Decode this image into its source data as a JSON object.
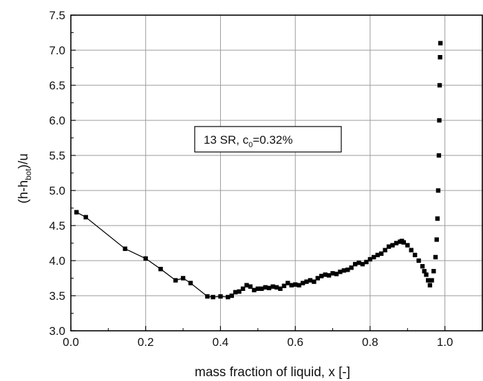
{
  "chart_data": {
    "type": "scatter",
    "xlabel": "mass fraction of liquid, x [-]",
    "ylabel": {
      "base": "(h-h",
      "sub": "bot",
      "tail": ")/u"
    },
    "xlim": [
      0.0,
      1.1
    ],
    "ylim": [
      3.0,
      7.5
    ],
    "x_ticks": [
      "0.0",
      "0.2",
      "0.4",
      "0.6",
      "0.8",
      "1.0"
    ],
    "y_ticks": [
      "3.0",
      "3.5",
      "4.0",
      "4.5",
      "5.0",
      "5.5",
      "6.0",
      "6.5",
      "7.0",
      "7.5"
    ],
    "grid": true,
    "annotation": {
      "pre": "13 SR,   c",
      "sub": "0",
      "post": "=0.32%"
    },
    "series": [
      {
        "line_points": [
          [
            0.015,
            4.69
          ],
          [
            0.04,
            4.62
          ],
          [
            0.145,
            4.17
          ],
          [
            0.2,
            4.03
          ],
          [
            0.24,
            3.88
          ],
          [
            0.28,
            3.72
          ],
          [
            0.3,
            3.75
          ],
          [
            0.32,
            3.68
          ],
          [
            0.365,
            3.49
          ],
          [
            0.38,
            3.48
          ],
          [
            0.4,
            3.49
          ],
          [
            0.42,
            3.48
          ]
        ],
        "points": [
          [
            0.015,
            4.69
          ],
          [
            0.04,
            4.62
          ],
          [
            0.145,
            4.17
          ],
          [
            0.2,
            4.03
          ],
          [
            0.24,
            3.88
          ],
          [
            0.28,
            3.72
          ],
          [
            0.3,
            3.75
          ],
          [
            0.32,
            3.68
          ],
          [
            0.365,
            3.49
          ],
          [
            0.38,
            3.48
          ],
          [
            0.4,
            3.49
          ],
          [
            0.42,
            3.48
          ],
          [
            0.43,
            3.5
          ],
          [
            0.44,
            3.55
          ],
          [
            0.45,
            3.56
          ],
          [
            0.46,
            3.6
          ],
          [
            0.47,
            3.65
          ],
          [
            0.48,
            3.63
          ],
          [
            0.49,
            3.58
          ],
          [
            0.5,
            3.6
          ],
          [
            0.51,
            3.6
          ],
          [
            0.52,
            3.62
          ],
          [
            0.53,
            3.61
          ],
          [
            0.54,
            3.63
          ],
          [
            0.55,
            3.62
          ],
          [
            0.56,
            3.6
          ],
          [
            0.57,
            3.64
          ],
          [
            0.58,
            3.68
          ],
          [
            0.59,
            3.65
          ],
          [
            0.6,
            3.66
          ],
          [
            0.61,
            3.65
          ],
          [
            0.62,
            3.68
          ],
          [
            0.63,
            3.7
          ],
          [
            0.64,
            3.72
          ],
          [
            0.65,
            3.7
          ],
          [
            0.66,
            3.75
          ],
          [
            0.67,
            3.78
          ],
          [
            0.68,
            3.8
          ],
          [
            0.69,
            3.79
          ],
          [
            0.7,
            3.82
          ],
          [
            0.71,
            3.81
          ],
          [
            0.72,
            3.84
          ],
          [
            0.73,
            3.86
          ],
          [
            0.74,
            3.87
          ],
          [
            0.75,
            3.9
          ],
          [
            0.76,
            3.95
          ],
          [
            0.77,
            3.97
          ],
          [
            0.78,
            3.95
          ],
          [
            0.79,
            3.98
          ],
          [
            0.8,
            4.02
          ],
          [
            0.81,
            4.05
          ],
          [
            0.82,
            4.08
          ],
          [
            0.83,
            4.1
          ],
          [
            0.84,
            4.15
          ],
          [
            0.85,
            4.2
          ],
          [
            0.86,
            4.22
          ],
          [
            0.87,
            4.25
          ],
          [
            0.88,
            4.27
          ],
          [
            0.885,
            4.28
          ],
          [
            0.89,
            4.26
          ],
          [
            0.9,
            4.22
          ],
          [
            0.91,
            4.15
          ],
          [
            0.92,
            4.08
          ],
          [
            0.93,
            4.0
          ],
          [
            0.94,
            3.92
          ],
          [
            0.945,
            3.85
          ],
          [
            0.95,
            3.8
          ],
          [
            0.955,
            3.72
          ],
          [
            0.96,
            3.65
          ],
          [
            0.965,
            3.72
          ],
          [
            0.97,
            3.85
          ],
          [
            0.975,
            4.05
          ],
          [
            0.978,
            4.3
          ],
          [
            0.98,
            4.6
          ],
          [
            0.982,
            5.0
          ],
          [
            0.984,
            5.5
          ],
          [
            0.985,
            6.0
          ],
          [
            0.986,
            6.5
          ],
          [
            0.987,
            6.9
          ],
          [
            0.988,
            7.1
          ]
        ]
      }
    ]
  }
}
